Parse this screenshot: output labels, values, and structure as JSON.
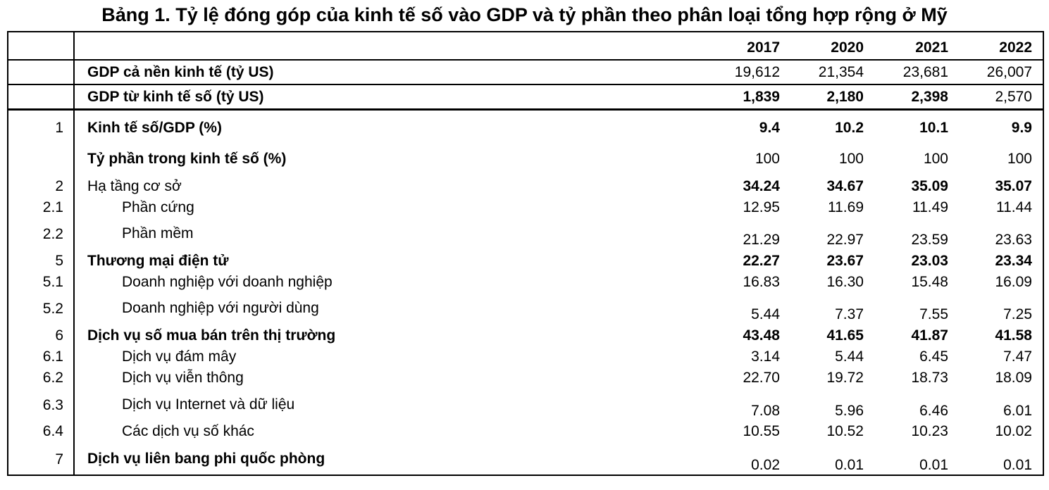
{
  "title": "Bảng 1. Tỷ lệ đóng góp của kinh tế số vào GDP và tỷ phần theo phân loại tổng hợp rộng ở Mỹ",
  "table": {
    "years": [
      "2017",
      "2020",
      "2021",
      "2022"
    ],
    "rows": [
      {
        "no": "",
        "label": "GDP cả nền kinh tế (tỷ US)",
        "values": [
          "19,612",
          "21,354",
          "23,681",
          "26,007"
        ]
      },
      {
        "no": "",
        "label": "GDP từ kinh tế số (tỷ US)",
        "values": [
          "1,839",
          "2,180",
          "2,398",
          "2,570"
        ]
      },
      {
        "no": "1",
        "label": "Kinh tế số/GDP (%)",
        "values": [
          "9.4",
          "10.2",
          "10.1",
          "9.9"
        ]
      },
      {
        "no": "",
        "label": "Tỷ phần trong kinh tế số (%)",
        "values": [
          "100",
          "100",
          "100",
          "100"
        ]
      },
      {
        "no": "2",
        "label": "Hạ tầng cơ sở",
        "values": [
          "34.24",
          "34.67",
          "35.09",
          "35.07"
        ]
      },
      {
        "no": "2.1",
        "label": "Phần cứng",
        "values": [
          "12.95",
          "11.69",
          "11.49",
          "11.44"
        ]
      },
      {
        "no": "2.2",
        "label": "Phần mềm",
        "values": [
          "21.29",
          "22.97",
          "23.59",
          "23.63"
        ]
      },
      {
        "no": "5",
        "label": "Thương mại điện tử",
        "values": [
          "22.27",
          "23.67",
          "23.03",
          "23.34"
        ]
      },
      {
        "no": "5.1",
        "label": "Doanh nghiệp với doanh nghiệp",
        "values": [
          "16.83",
          "16.30",
          "15.48",
          "16.09"
        ]
      },
      {
        "no": "5.2",
        "label": "Doanh nghiệp với người dùng",
        "values": [
          "5.44",
          "7.37",
          "7.55",
          "7.25"
        ]
      },
      {
        "no": "6",
        "label": "Dịch vụ số mua bán trên thị trường",
        "values": [
          "43.48",
          "41.65",
          "41.87",
          "41.58"
        ]
      },
      {
        "no": "6.1",
        "label": "Dịch vụ đám mây",
        "values": [
          "3.14",
          "5.44",
          "6.45",
          "7.47"
        ]
      },
      {
        "no": "6.2",
        "label": "Dịch vụ viễn thông",
        "values": [
          "22.70",
          "19.72",
          "18.73",
          "18.09"
        ]
      },
      {
        "no": "6.3",
        "label": "Dịch vụ Internet và dữ liệu",
        "values": [
          "7.08",
          "5.96",
          "6.46",
          "6.01"
        ]
      },
      {
        "no": "6.4",
        "label": "Các dịch vụ số khác",
        "values": [
          "10.55",
          "10.52",
          "10.23",
          "10.02"
        ]
      },
      {
        "no": "7",
        "label": "Dịch vụ liên bang phi quốc phòng",
        "values": [
          "0.02",
          "0.01",
          "0.01",
          "0.01"
        ]
      }
    ]
  }
}
